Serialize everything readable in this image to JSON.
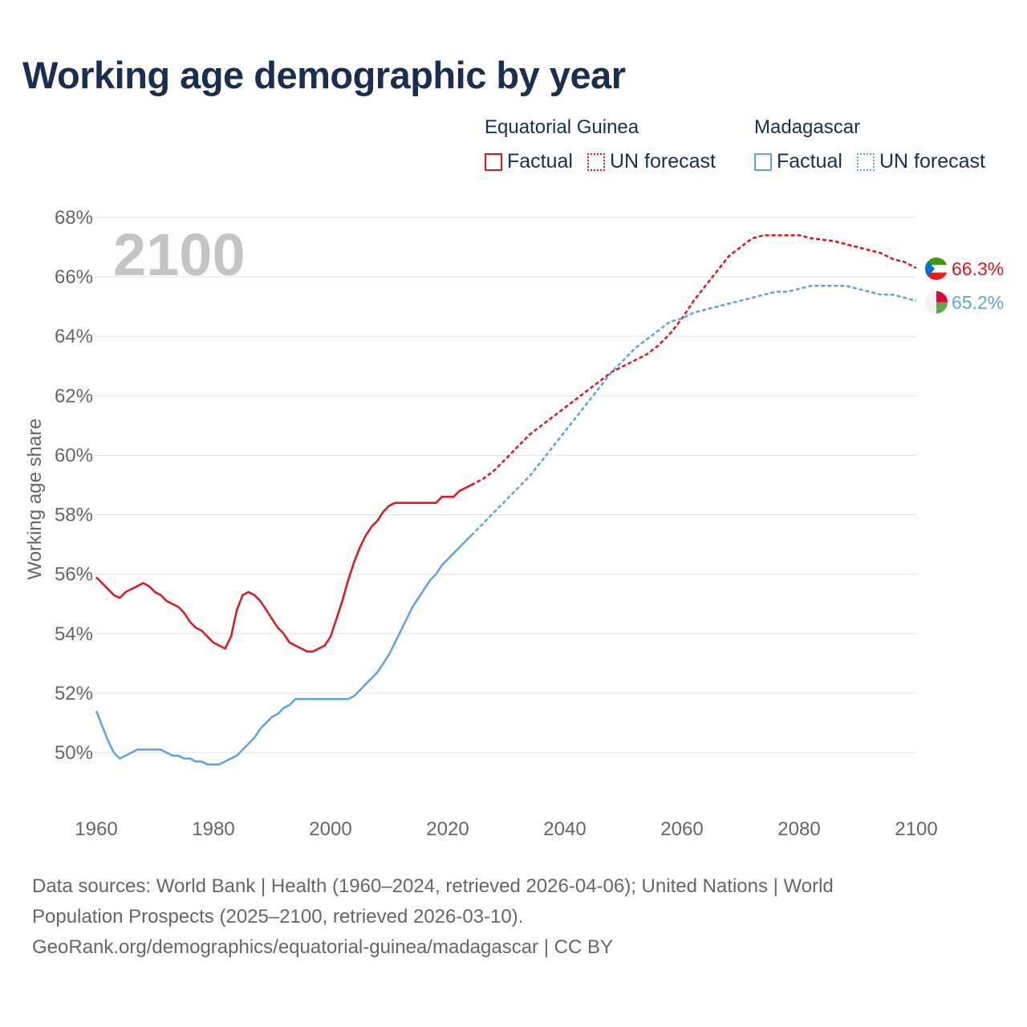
{
  "title": "Working age demographic by year",
  "legend": [
    {
      "group": "Equatorial Guinea",
      "color": "#e3131e",
      "factual_label": "Factual",
      "forecast_label": "UN forecast"
    },
    {
      "group": "Madagascar",
      "color": "#5ba3e6",
      "factual_label": "Factual",
      "forecast_label": "UN forecast"
    }
  ],
  "chart_data": {
    "type": "line",
    "title": "Working age demographic by year",
    "xlabel": "",
    "ylabel": "Working age share",
    "xlim": [
      1960,
      2100
    ],
    "ylim": [
      48.8,
      68
    ],
    "x_ticks": [
      1960,
      1980,
      2000,
      2020,
      2040,
      2060,
      2080,
      2100
    ],
    "y_ticks": [
      50,
      52,
      54,
      56,
      58,
      60,
      62,
      64,
      66,
      68
    ],
    "y_tick_suffix": "%",
    "year_overlay": "2100",
    "series": [
      {
        "name": "Equatorial Guinea",
        "color": "#e3131e",
        "end_label": "66.3%",
        "factual": [
          [
            1960,
            55.9
          ],
          [
            1962,
            55.5
          ],
          [
            1963,
            55.3
          ],
          [
            1964,
            55.2
          ],
          [
            1965,
            55.4
          ],
          [
            1966,
            55.5
          ],
          [
            1967,
            55.6
          ],
          [
            1968,
            55.7
          ],
          [
            1969,
            55.6
          ],
          [
            1970,
            55.4
          ],
          [
            1971,
            55.3
          ],
          [
            1972,
            55.1
          ],
          [
            1973,
            55.0
          ],
          [
            1974,
            54.9
          ],
          [
            1975,
            54.7
          ],
          [
            1976,
            54.4
          ],
          [
            1977,
            54.2
          ],
          [
            1978,
            54.1
          ],
          [
            1979,
            53.9
          ],
          [
            1980,
            53.7
          ],
          [
            1981,
            53.6
          ],
          [
            1982,
            53.5
          ],
          [
            1983,
            53.9
          ],
          [
            1984,
            54.8
          ],
          [
            1985,
            55.3
          ],
          [
            1986,
            55.4
          ],
          [
            1987,
            55.3
          ],
          [
            1988,
            55.1
          ],
          [
            1989,
            54.8
          ],
          [
            1990,
            54.5
          ],
          [
            1991,
            54.2
          ],
          [
            1992,
            54.0
          ],
          [
            1993,
            53.7
          ],
          [
            1994,
            53.6
          ],
          [
            1995,
            53.5
          ],
          [
            1996,
            53.4
          ],
          [
            1997,
            53.4
          ],
          [
            1998,
            53.5
          ],
          [
            1999,
            53.6
          ],
          [
            2000,
            53.9
          ],
          [
            2001,
            54.5
          ],
          [
            2002,
            55.1
          ],
          [
            2003,
            55.8
          ],
          [
            2004,
            56.4
          ],
          [
            2005,
            56.9
          ],
          [
            2006,
            57.3
          ],
          [
            2007,
            57.6
          ],
          [
            2008,
            57.8
          ],
          [
            2009,
            58.1
          ],
          [
            2010,
            58.3
          ],
          [
            2011,
            58.4
          ],
          [
            2012,
            58.4
          ],
          [
            2014,
            58.4
          ],
          [
            2016,
            58.4
          ],
          [
            2018,
            58.4
          ],
          [
            2019,
            58.6
          ],
          [
            2020,
            58.6
          ],
          [
            2021,
            58.6
          ],
          [
            2022,
            58.8
          ],
          [
            2023,
            58.9
          ],
          [
            2024,
            59.0
          ]
        ],
        "forecast": [
          [
            2024,
            59.0
          ],
          [
            2025,
            59.1
          ],
          [
            2026,
            59.2
          ],
          [
            2028,
            59.5
          ],
          [
            2030,
            59.9
          ],
          [
            2032,
            60.3
          ],
          [
            2034,
            60.7
          ],
          [
            2036,
            61.0
          ],
          [
            2038,
            61.3
          ],
          [
            2040,
            61.6
          ],
          [
            2042,
            61.9
          ],
          [
            2044,
            62.2
          ],
          [
            2046,
            62.5
          ],
          [
            2048,
            62.8
          ],
          [
            2050,
            63.0
          ],
          [
            2052,
            63.2
          ],
          [
            2054,
            63.4
          ],
          [
            2056,
            63.7
          ],
          [
            2058,
            64.1
          ],
          [
            2060,
            64.6
          ],
          [
            2062,
            65.2
          ],
          [
            2064,
            65.7
          ],
          [
            2066,
            66.2
          ],
          [
            2068,
            66.7
          ],
          [
            2070,
            67.0
          ],
          [
            2072,
            67.3
          ],
          [
            2074,
            67.4
          ],
          [
            2076,
            67.4
          ],
          [
            2080,
            67.4
          ],
          [
            2082,
            67.3
          ],
          [
            2086,
            67.2
          ],
          [
            2090,
            67.0
          ],
          [
            2094,
            66.8
          ],
          [
            2096,
            66.6
          ],
          [
            2098,
            66.5
          ],
          [
            2100,
            66.3
          ]
        ]
      },
      {
        "name": "Madagascar",
        "color": "#5ba3e6",
        "end_label": "65.2%",
        "factual": [
          [
            1960,
            51.4
          ],
          [
            1961,
            50.9
          ],
          [
            1962,
            50.4
          ],
          [
            1963,
            50.0
          ],
          [
            1964,
            49.8
          ],
          [
            1965,
            49.9
          ],
          [
            1966,
            50.0
          ],
          [
            1967,
            50.1
          ],
          [
            1968,
            50.1
          ],
          [
            1970,
            50.1
          ],
          [
            1971,
            50.1
          ],
          [
            1972,
            50.0
          ],
          [
            1973,
            49.9
          ],
          [
            1974,
            49.9
          ],
          [
            1975,
            49.8
          ],
          [
            1976,
            49.8
          ],
          [
            1977,
            49.7
          ],
          [
            1978,
            49.7
          ],
          [
            1979,
            49.6
          ],
          [
            1980,
            49.6
          ],
          [
            1981,
            49.6
          ],
          [
            1982,
            49.7
          ],
          [
            1983,
            49.8
          ],
          [
            1984,
            49.9
          ],
          [
            1985,
            50.1
          ],
          [
            1986,
            50.3
          ],
          [
            1987,
            50.5
          ],
          [
            1988,
            50.8
          ],
          [
            1989,
            51.0
          ],
          [
            1990,
            51.2
          ],
          [
            1991,
            51.3
          ],
          [
            1992,
            51.5
          ],
          [
            1993,
            51.6
          ],
          [
            1994,
            51.8
          ],
          [
            1995,
            51.8
          ],
          [
            1997,
            51.8
          ],
          [
            2000,
            51.8
          ],
          [
            2003,
            51.8
          ],
          [
            2004,
            51.9
          ],
          [
            2005,
            52.1
          ],
          [
            2006,
            52.3
          ],
          [
            2007,
            52.5
          ],
          [
            2008,
            52.7
          ],
          [
            2009,
            53.0
          ],
          [
            2010,
            53.3
          ],
          [
            2011,
            53.7
          ],
          [
            2012,
            54.1
          ],
          [
            2013,
            54.5
          ],
          [
            2014,
            54.9
          ],
          [
            2015,
            55.2
          ],
          [
            2016,
            55.5
          ],
          [
            2017,
            55.8
          ],
          [
            2018,
            56.0
          ],
          [
            2019,
            56.3
          ],
          [
            2020,
            56.5
          ],
          [
            2021,
            56.7
          ],
          [
            2022,
            56.9
          ],
          [
            2023,
            57.1
          ],
          [
            2024,
            57.3
          ]
        ],
        "forecast": [
          [
            2024,
            57.3
          ],
          [
            2026,
            57.7
          ],
          [
            2028,
            58.1
          ],
          [
            2030,
            58.5
          ],
          [
            2032,
            58.9
          ],
          [
            2034,
            59.3
          ],
          [
            2036,
            59.8
          ],
          [
            2038,
            60.3
          ],
          [
            2040,
            60.8
          ],
          [
            2042,
            61.3
          ],
          [
            2044,
            61.8
          ],
          [
            2046,
            62.3
          ],
          [
            2048,
            62.8
          ],
          [
            2050,
            63.2
          ],
          [
            2052,
            63.6
          ],
          [
            2054,
            63.9
          ],
          [
            2056,
            64.2
          ],
          [
            2058,
            64.5
          ],
          [
            2060,
            64.6
          ],
          [
            2062,
            64.8
          ],
          [
            2064,
            64.9
          ],
          [
            2066,
            65.0
          ],
          [
            2068,
            65.1
          ],
          [
            2070,
            65.2
          ],
          [
            2072,
            65.3
          ],
          [
            2074,
            65.4
          ],
          [
            2076,
            65.5
          ],
          [
            2078,
            65.5
          ],
          [
            2080,
            65.6
          ],
          [
            2082,
            65.7
          ],
          [
            2086,
            65.7
          ],
          [
            2088,
            65.7
          ],
          [
            2090,
            65.6
          ],
          [
            2092,
            65.5
          ],
          [
            2094,
            65.4
          ],
          [
            2096,
            65.4
          ],
          [
            2098,
            65.3
          ],
          [
            2100,
            65.2
          ]
        ]
      }
    ]
  },
  "footer": {
    "line1": "Data sources: World Bank | Health (1960–2024, retrieved 2026-04-06); United Nations | World",
    "line2": "Population Prospects (2025–2100, retrieved 2026-03-10).",
    "line3": "GeoRank.org/demographics/equatorial-guinea/madagascar | CC BY"
  }
}
